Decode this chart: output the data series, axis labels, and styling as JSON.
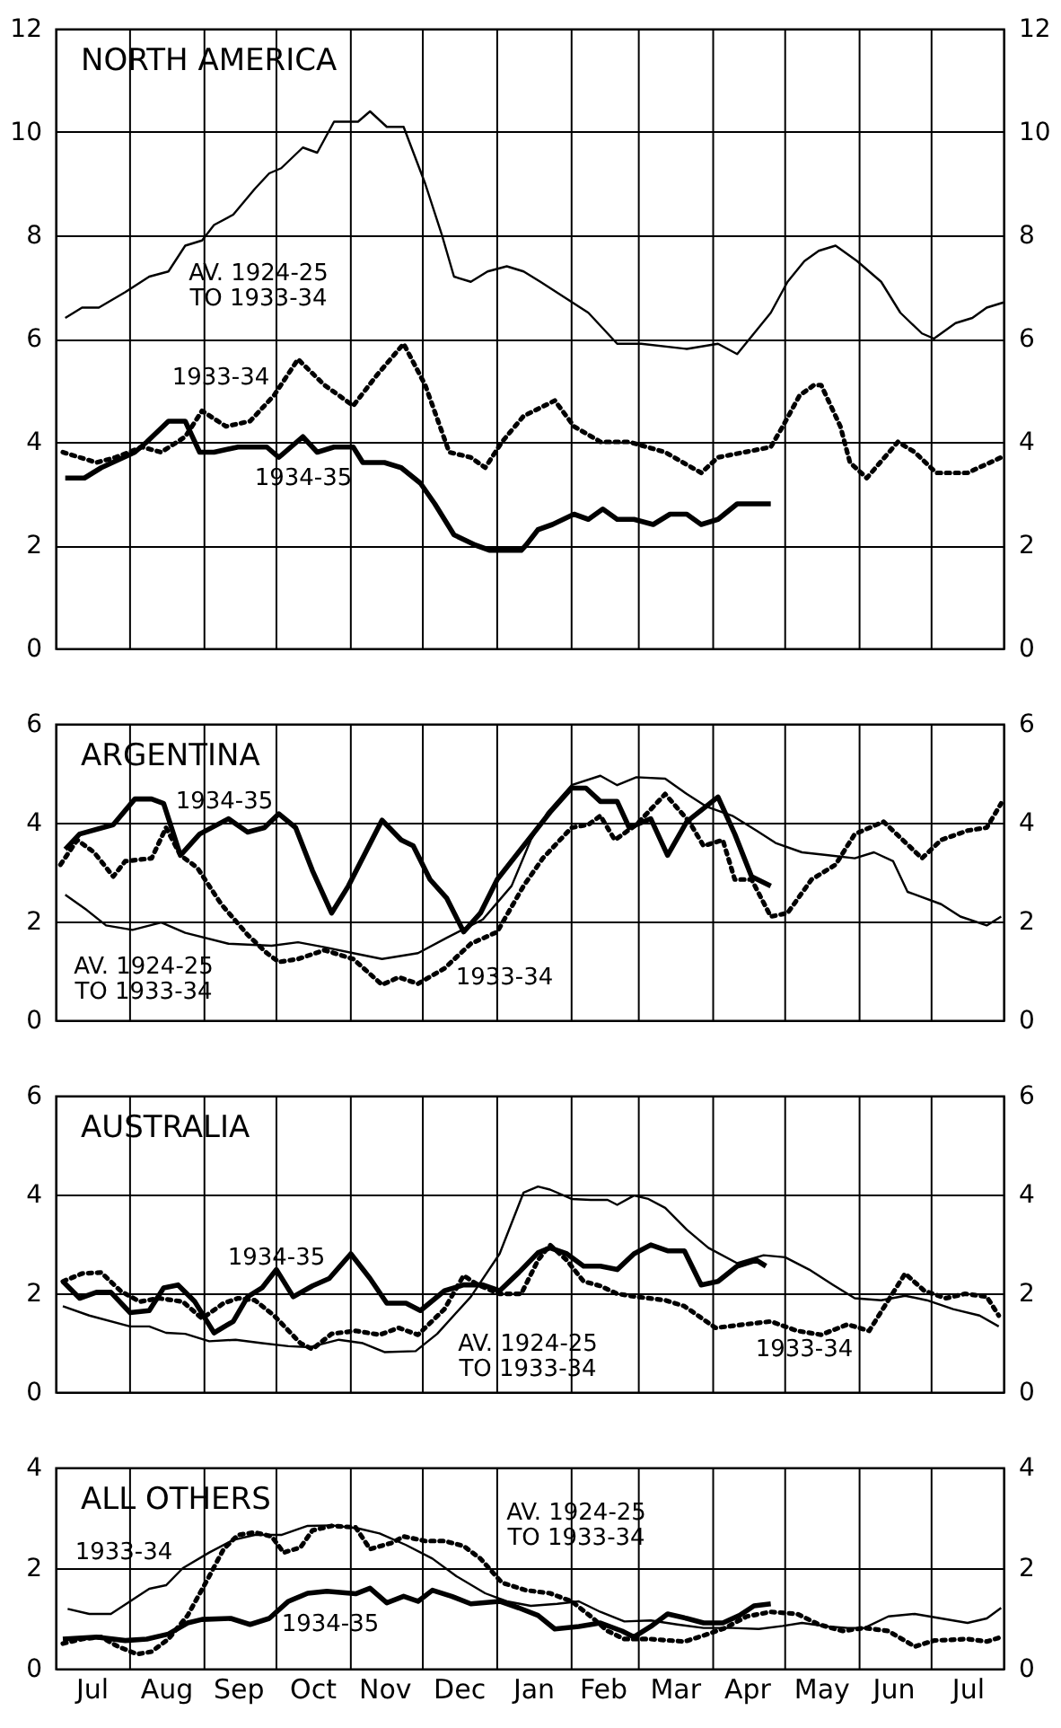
{
  "chart_data": [
    {
      "type": "line",
      "title": "NORTH AMERICA",
      "xlim": [
        "1934-07-01",
        "1935-07-31"
      ],
      "ylim": [
        0,
        12
      ],
      "yticks": [
        0,
        2,
        4,
        6,
        8,
        10,
        12
      ],
      "y2lim": [
        0,
        12
      ],
      "y2ticks": [
        0,
        2,
        4,
        6,
        8,
        10,
        12
      ],
      "grid": true,
      "tick_labels": "y",
      "xticks": [
        {
          "value": "1934-08-01",
          "label": null
        },
        {
          "value": "1934-09-01",
          "label": null
        },
        {
          "value": "1934-10-01",
          "label": null
        },
        {
          "value": "1934-11-01",
          "label": null
        },
        {
          "value": "1934-12-01",
          "label": null
        },
        {
          "value": "1935-01-01",
          "label": null
        },
        {
          "value": "1935-02-01",
          "label": null
        },
        {
          "value": "1935-03-01",
          "label": null
        },
        {
          "value": "1935-04-01",
          "label": null
        },
        {
          "value": "1935-05-01",
          "label": null
        },
        {
          "value": "1935-06-01",
          "label": null
        },
        {
          "value": "1935-07-01",
          "label": null
        }
      ],
      "series": [
        {
          "color": "#000000",
          "line_style": "solid",
          "x": [
            "1934-07-05",
            "1934-07-12",
            "1934-07-19",
            "1934-07-30",
            "1934-08-09",
            "1934-08-17",
            "1934-08-24",
            "1934-08-31",
            "1934-09-05",
            "1934-09-13",
            "1934-09-22",
            "1934-09-28",
            "1934-10-03",
            "1934-10-12",
            "1934-10-18",
            "1934-10-25",
            "1934-11-04",
            "1934-11-09",
            "1934-11-16",
            "1934-11-23",
            "1934-12-02",
            "1934-12-09",
            "1934-12-14",
            "1934-12-21",
            "1934-12-28",
            "1935-01-05",
            "1935-01-12",
            "1935-01-19",
            "1935-01-29",
            "1935-02-08",
            "1935-02-16",
            "1935-02-20",
            "1935-03-02",
            "1935-03-21",
            "1935-04-03",
            "1935-04-11",
            "1935-04-18",
            "1935-04-25",
            "1935-05-02",
            "1935-05-09",
            "1935-05-15",
            "1935-05-22",
            "1935-05-31",
            "1935-06-10",
            "1935-06-18",
            "1935-06-27",
            "1935-07-02",
            "1935-07-11",
            "1935-07-18",
            "1935-07-24",
            "1935-07-31"
          ],
          "values": [
            6.4,
            6.6,
            6.6,
            6.9,
            7.2,
            7.3,
            7.8,
            7.9,
            8.2,
            8.4,
            8.9,
            9.2,
            9.3,
            9.7,
            9.6,
            10.2,
            10.2,
            10.4,
            10.1,
            10.1,
            9.0,
            8.0,
            7.2,
            7.1,
            7.3,
            7.4,
            7.3,
            7.1,
            6.8,
            6.5,
            6.1,
            5.9,
            5.9,
            5.8,
            5.9,
            5.7,
            6.1,
            6.5,
            7.1,
            7.5,
            7.7,
            7.8,
            7.5,
            7.1,
            6.5,
            6.1,
            6.0,
            6.3,
            6.4,
            6.6,
            6.7
          ]
        },
        {
          "color": "#000000",
          "line_style": "dotted",
          "x": [
            "1934-07-04",
            "1934-07-18",
            "1934-07-26",
            "1934-08-06",
            "1934-08-14",
            "1934-08-24",
            "1934-08-31",
            "1934-09-10",
            "1934-09-20",
            "1934-09-30",
            "1934-10-10",
            "1934-10-21",
            "1934-11-02",
            "1934-11-12",
            "1934-11-23",
            "1934-12-02",
            "1934-12-12",
            "1934-12-21",
            "1934-12-27",
            "1935-01-03",
            "1935-01-12",
            "1935-01-25",
            "1935-02-02",
            "1935-02-13",
            "1935-02-25",
            "1935-03-12",
            "1935-03-27",
            "1935-04-03",
            "1935-04-25",
            "1935-04-30",
            "1935-05-07",
            "1935-05-13",
            "1935-05-16",
            "1935-05-24",
            "1935-05-28",
            "1935-06-04",
            "1935-06-17",
            "1935-06-24",
            "1935-07-03",
            "1935-07-16",
            "1935-07-30"
          ],
          "values": [
            3.8,
            3.6,
            3.7,
            3.9,
            3.8,
            4.1,
            4.6,
            4.3,
            4.4,
            4.9,
            5.6,
            5.1,
            4.7,
            5.3,
            5.9,
            5.1,
            3.8,
            3.7,
            3.5,
            4.0,
            4.5,
            4.8,
            4.3,
            4.0,
            4.0,
            3.8,
            3.4,
            3.7,
            3.9,
            4.3,
            4.9,
            5.1,
            5.1,
            4.3,
            3.6,
            3.3,
            4.0,
            3.8,
            3.4,
            3.4,
            3.7
          ]
        },
        {
          "color": "#000000",
          "line_style": "solid",
          "x": [
            "1934-07-05",
            "1934-07-13",
            "1934-07-20",
            "1934-08-03",
            "1934-08-08",
            "1934-08-17",
            "1934-08-24",
            "1934-08-30",
            "1934-09-05",
            "1934-09-15",
            "1934-09-27",
            "1934-10-02",
            "1934-10-12",
            "1934-10-18",
            "1934-10-25",
            "1934-11-02",
            "1934-11-06",
            "1934-11-15",
            "1934-11-22",
            "1934-11-30",
            "1934-12-06",
            "1934-12-14",
            "1934-12-23",
            "1934-12-29",
            "1935-01-11",
            "1935-01-13",
            "1935-01-18",
            "1935-01-24",
            "1935-02-02",
            "1935-02-08",
            "1935-02-14",
            "1935-02-20",
            "1935-02-27",
            "1935-03-07",
            "1935-03-14",
            "1935-03-21",
            "1935-03-27",
            "1935-04-03",
            "1935-04-11",
            "1935-04-25"
          ],
          "values": [
            3.3,
            3.3,
            3.5,
            3.8,
            4.0,
            4.4,
            4.4,
            3.8,
            3.8,
            3.9,
            3.9,
            3.7,
            4.1,
            3.8,
            3.9,
            3.9,
            3.6,
            3.6,
            3.5,
            3.2,
            2.8,
            2.2,
            2.0,
            1.9,
            1.9,
            2.0,
            2.3,
            2.4,
            2.6,
            2.5,
            2.7,
            2.5,
            2.5,
            2.4,
            2.6,
            2.6,
            2.4,
            2.5,
            2.8,
            2.8
          ]
        }
      ],
      "annotations": [
        "AV. 1924-25\nTO 1933-34",
        "1933-34",
        "1934-35"
      ]
    },
    {
      "type": "line",
      "title": "ARGENTINA",
      "xlim": [
        "1934-07-01",
        "1935-07-31"
      ],
      "ylim": [
        0,
        6
      ],
      "yticks": [
        0,
        2,
        4,
        6
      ],
      "y2lim": [
        0,
        6
      ],
      "y2ticks": [
        0,
        2,
        4,
        6
      ],
      "grid": true,
      "tick_labels": "y",
      "xticks": [
        {
          "value": "1934-08-01",
          "label": null
        },
        {
          "value": "1934-09-01",
          "label": null
        },
        {
          "value": "1934-10-01",
          "label": null
        },
        {
          "value": "1934-11-01",
          "label": null
        },
        {
          "value": "1934-12-01",
          "label": null
        },
        {
          "value": "1935-01-01",
          "label": null
        },
        {
          "value": "1935-02-01",
          "label": null
        },
        {
          "value": "1935-03-01",
          "label": null
        },
        {
          "value": "1935-04-01",
          "label": null
        },
        {
          "value": "1935-05-01",
          "label": null
        },
        {
          "value": "1935-06-01",
          "label": null
        },
        {
          "value": "1935-07-01",
          "label": null
        }
      ],
      "series": [
        {
          "color": "#000000",
          "line_style": "solid",
          "x": [
            "1934-07-05",
            "1934-07-14",
            "1934-07-22",
            "1934-08-02",
            "1934-08-14",
            "1934-08-24",
            "1934-09-11",
            "1934-09-29",
            "1934-10-10",
            "1934-10-21",
            "1934-11-02",
            "1934-11-14",
            "1934-11-29",
            "1934-12-11",
            "1934-12-26",
            "1935-01-07",
            "1935-01-15",
            "1935-01-22",
            "1935-02-01",
            "1935-02-13",
            "1935-02-20",
            "1935-02-28",
            "1935-03-12",
            "1935-03-21",
            "1935-03-29",
            "1935-04-09",
            "1935-04-19",
            "1935-04-27",
            "1935-05-08",
            "1935-05-19",
            "1935-05-30",
            "1935-06-07",
            "1935-06-15",
            "1935-06-21",
            "1935-07-05",
            "1935-07-13",
            "1935-07-24",
            "1935-07-30"
          ],
          "values": [
            2.54,
            2.23,
            1.92,
            1.83,
            1.98,
            1.77,
            1.55,
            1.51,
            1.58,
            1.48,
            1.36,
            1.24,
            1.36,
            1.67,
            2.04,
            2.72,
            3.65,
            4.21,
            4.76,
            4.95,
            4.76,
            4.92,
            4.89,
            4.58,
            4.33,
            4.14,
            3.84,
            3.59,
            3.4,
            3.34,
            3.28,
            3.4,
            3.22,
            2.6,
            2.35,
            2.1,
            1.92,
            2.1
          ]
        },
        {
          "color": "#000000",
          "line_style": "dotted",
          "x": [
            "1934-07-03",
            "1934-07-10",
            "1934-07-17",
            "1934-07-25",
            "1934-07-30",
            "1934-08-10",
            "1934-08-16",
            "1934-08-22",
            "1934-08-29",
            "1934-09-08",
            "1934-09-19",
            "1934-09-27",
            "1934-10-02",
            "1934-10-10",
            "1934-10-21",
            "1934-11-02",
            "1934-11-14",
            "1934-11-21",
            "1934-11-29",
            "1934-12-10",
            "1934-12-21",
            "1935-01-01",
            "1935-01-12",
            "1935-01-20",
            "1935-02-01",
            "1935-02-08",
            "1935-02-13",
            "1935-02-19",
            "1935-02-28",
            "1935-03-12",
            "1935-03-22",
            "1935-03-28",
            "1935-04-05",
            "1935-04-10",
            "1935-04-17",
            "1935-04-25",
            "1935-05-02",
            "1935-05-12",
            "1935-05-22",
            "1935-05-30",
            "1935-06-11",
            "1935-06-19",
            "1935-06-27",
            "1935-07-05",
            "1935-07-16",
            "1935-07-24",
            "1935-07-30"
          ],
          "values": [
            3.15,
            3.65,
            3.4,
            2.91,
            3.22,
            3.28,
            3.9,
            3.34,
            3.09,
            2.35,
            1.73,
            1.36,
            1.18,
            1.24,
            1.42,
            1.24,
            0.72,
            0.87,
            0.74,
            1.05,
            1.55,
            1.79,
            2.72,
            3.28,
            3.9,
            3.96,
            4.14,
            3.65,
            3.96,
            4.58,
            4.02,
            3.53,
            3.65,
            2.85,
            2.85,
            2.1,
            2.17,
            2.85,
            3.15,
            3.77,
            4.02,
            3.65,
            3.28,
            3.65,
            3.84,
            3.9,
            4.39
          ]
        },
        {
          "color": "#000000",
          "line_style": "solid",
          "x": [
            "1934-07-05",
            "1934-07-11",
            "1934-07-25",
            "1934-08-03",
            "1934-08-10",
            "1934-08-15",
            "1934-08-22",
            "1934-08-30",
            "1934-09-11",
            "1934-09-19",
            "1934-09-26",
            "1934-10-02",
            "1934-10-09",
            "1934-10-16",
            "1934-10-24",
            "1934-10-31",
            "1934-11-14",
            "1934-11-22",
            "1934-11-27",
            "1934-12-04",
            "1934-12-11",
            "1934-12-18",
            "1934-12-25",
            "1935-01-01",
            "1935-01-12",
            "1935-01-23",
            "1935-02-01",
            "1935-02-07",
            "1935-02-13",
            "1935-02-20",
            "1935-02-25",
            "1935-03-06",
            "1935-03-13",
            "1935-03-21",
            "1935-04-03",
            "1935-04-10",
            "1935-04-17",
            "1935-04-25"
          ],
          "values": [
            3.46,
            3.77,
            3.96,
            4.48,
            4.48,
            4.39,
            3.34,
            3.77,
            4.08,
            3.81,
            3.9,
            4.18,
            3.9,
            3.03,
            2.17,
            2.72,
            4.05,
            3.65,
            3.53,
            2.85,
            2.47,
            1.79,
            2.17,
            2.85,
            3.53,
            4.21,
            4.7,
            4.7,
            4.43,
            4.43,
            3.9,
            4.08,
            3.34,
            4.02,
            4.52,
            3.77,
            2.91,
            2.72
          ]
        }
      ],
      "annotations": [
        "1934-35",
        "AV. 1924-25\nTO 1933-34",
        "1933-34"
      ]
    },
    {
      "type": "line",
      "title": "AUSTRALIA",
      "xlim": [
        "1934-07-01",
        "1935-07-31"
      ],
      "ylim": [
        0,
        6
      ],
      "yticks": [
        0,
        2,
        4,
        6
      ],
      "y2lim": [
        0,
        6
      ],
      "y2ticks": [
        0,
        2,
        4,
        6
      ],
      "grid": true,
      "tick_labels": "y",
      "xticks": [
        {
          "value": "1934-08-01",
          "label": null
        },
        {
          "value": "1934-09-01",
          "label": null
        },
        {
          "value": "1934-10-01",
          "label": null
        },
        {
          "value": "1934-11-01",
          "label": null
        },
        {
          "value": "1934-12-01",
          "label": null
        },
        {
          "value": "1935-01-01",
          "label": null
        },
        {
          "value": "1935-02-01",
          "label": null
        },
        {
          "value": "1935-03-01",
          "label": null
        },
        {
          "value": "1935-04-01",
          "label": null
        },
        {
          "value": "1935-05-01",
          "label": null
        },
        {
          "value": "1935-06-01",
          "label": null
        },
        {
          "value": "1935-07-01",
          "label": null
        }
      ],
      "series": [
        {
          "color": "#000000",
          "line_style": "solid",
          "x": [
            "1934-07-04",
            "1934-07-15",
            "1934-08-01",
            "1934-08-09",
            "1934-08-16",
            "1934-08-24",
            "1934-09-03",
            "1934-09-14",
            "1934-09-25",
            "1934-10-06",
            "1934-10-15",
            "1934-10-27",
            "1934-11-06",
            "1934-11-15",
            "1934-11-28",
            "1934-12-07",
            "1934-12-21",
            "1935-01-02",
            "1935-01-12",
            "1935-01-18",
            "1935-01-23",
            "1935-02-01",
            "1935-02-09",
            "1935-02-16",
            "1935-02-20",
            "1935-02-27",
            "1935-03-05",
            "1935-03-12",
            "1935-03-21",
            "1935-03-30",
            "1935-04-11",
            "1935-04-22",
            "1935-05-01",
            "1935-05-11",
            "1935-05-21",
            "1935-05-30",
            "1935-06-10",
            "1935-06-20",
            "1935-06-29",
            "1935-07-10",
            "1935-07-21",
            "1935-07-29"
          ],
          "values": [
            1.74,
            1.55,
            1.33,
            1.33,
            1.2,
            1.18,
            1.03,
            1.06,
            0.99,
            0.93,
            0.91,
            1.06,
            0.99,
            0.81,
            0.83,
            1.18,
            1.93,
            2.8,
            4.04,
            4.16,
            4.1,
            3.91,
            3.89,
            3.89,
            3.79,
            3.98,
            3.91,
            3.73,
            3.29,
            2.92,
            2.61,
            2.77,
            2.73,
            2.48,
            2.17,
            1.9,
            1.86,
            1.95,
            1.86,
            1.68,
            1.55,
            1.33
          ]
        },
        {
          "color": "#000000",
          "line_style": "dotted",
          "x": [
            "1934-07-04",
            "1934-07-12",
            "1934-07-20",
            "1934-07-28",
            "1934-08-05",
            "1934-08-13",
            "1934-08-23",
            "1934-08-31",
            "1934-09-09",
            "1934-09-15",
            "1934-09-22",
            "1934-09-30",
            "1934-10-11",
            "1934-10-16",
            "1934-10-24",
            "1934-11-03",
            "1934-11-13",
            "1934-11-21",
            "1934-11-29",
            "1934-12-10",
            "1934-12-18",
            "1934-12-24",
            "1935-01-02",
            "1935-01-11",
            "1935-01-18",
            "1935-01-23",
            "1935-01-30",
            "1935-02-06",
            "1935-02-13",
            "1935-02-20",
            "1935-02-28",
            "1935-03-12",
            "1935-03-20",
            "1935-04-02",
            "1935-04-14",
            "1935-04-25",
            "1935-05-06",
            "1935-05-16",
            "1935-05-27",
            "1935-06-05",
            "1935-06-13",
            "1935-06-20",
            "1935-06-28",
            "1935-07-07",
            "1935-07-15",
            "1935-07-24",
            "1935-07-29"
          ],
          "values": [
            2.24,
            2.4,
            2.42,
            2.05,
            1.83,
            1.9,
            1.83,
            1.49,
            1.8,
            1.9,
            1.86,
            1.55,
            0.99,
            0.87,
            1.18,
            1.24,
            1.16,
            1.3,
            1.16,
            1.68,
            2.36,
            2.17,
            1.99,
            1.99,
            2.67,
            2.98,
            2.67,
            2.24,
            2.15,
            1.99,
            1.93,
            1.86,
            1.74,
            1.3,
            1.37,
            1.43,
            1.24,
            1.16,
            1.37,
            1.24,
            1.86,
            2.4,
            2.05,
            1.9,
            1.99,
            1.93,
            1.55
          ]
        },
        {
          "color": "#000000",
          "line_style": "solid",
          "x": [
            "1934-07-04",
            "1934-07-11",
            "1934-07-18",
            "1934-07-24",
            "1934-08-01",
            "1934-08-09",
            "1934-08-15",
            "1934-08-21",
            "1934-08-28",
            "1934-09-05",
            "1934-09-13",
            "1934-09-19",
            "1934-09-25",
            "1934-10-01",
            "1934-10-08",
            "1934-10-16",
            "1934-10-23",
            "1934-11-01",
            "1934-11-09",
            "1934-11-16",
            "1934-11-24",
            "1934-11-30",
            "1934-12-10",
            "1934-12-18",
            "1934-12-26",
            "1935-01-02",
            "1935-01-10",
            "1935-01-18",
            "1935-01-23",
            "1935-01-30",
            "1935-02-06",
            "1935-02-13",
            "1935-02-20",
            "1935-02-27",
            "1935-03-06",
            "1935-03-13",
            "1935-03-20",
            "1935-03-27",
            "1935-04-03",
            "1935-04-11",
            "1935-04-19",
            "1935-04-23"
          ],
          "values": [
            2.24,
            1.9,
            2.02,
            2.02,
            1.61,
            1.65,
            2.11,
            2.17,
            1.83,
            1.2,
            1.43,
            1.93,
            2.11,
            2.48,
            1.93,
            2.15,
            2.3,
            2.8,
            2.3,
            1.8,
            1.8,
            1.65,
            2.05,
            2.17,
            2.17,
            2.05,
            2.42,
            2.82,
            2.92,
            2.8,
            2.55,
            2.55,
            2.48,
            2.8,
            2.98,
            2.86,
            2.86,
            2.17,
            2.24,
            2.55,
            2.67,
            2.55
          ]
        }
      ],
      "annotations": [
        "1934-35",
        "AV. 1924-25\nTO 1933-34",
        "1933-34"
      ]
    },
    {
      "type": "line",
      "title": "ALL OTHERS",
      "xlim": [
        "1934-07-01",
        "1935-07-31"
      ],
      "ylim": [
        0,
        4
      ],
      "yticks": [
        0,
        2,
        4
      ],
      "y2lim": [
        0,
        4
      ],
      "y2ticks": [
        0,
        2,
        4
      ],
      "grid": true,
      "xticks": [
        {
          "value": "1934-07-16",
          "label": "Jul"
        },
        {
          "value": "1934-08-01",
          "label": null
        },
        {
          "value": "1934-08-16",
          "label": "Aug"
        },
        {
          "value": "1934-09-01",
          "label": null
        },
        {
          "value": "1934-09-15",
          "label": "Sep"
        },
        {
          "value": "1934-10-01",
          "label": null
        },
        {
          "value": "1934-10-16",
          "label": "Oct"
        },
        {
          "value": "1934-11-01",
          "label": null
        },
        {
          "value": "1934-11-15",
          "label": "Nov"
        },
        {
          "value": "1934-12-01",
          "label": null
        },
        {
          "value": "1934-12-16",
          "label": "Dec"
        },
        {
          "value": "1935-01-01",
          "label": null
        },
        {
          "value": "1935-01-16",
          "label": "Jan"
        },
        {
          "value": "1935-02-01",
          "label": null
        },
        {
          "value": "1935-02-14",
          "label": "Feb"
        },
        {
          "value": "1935-03-01",
          "label": null
        },
        {
          "value": "1935-03-16",
          "label": "Mar"
        },
        {
          "value": "1935-04-01",
          "label": null
        },
        {
          "value": "1935-04-15",
          "label": "Apr"
        },
        {
          "value": "1935-05-01",
          "label": null
        },
        {
          "value": "1935-05-16",
          "label": "May"
        },
        {
          "value": "1935-06-01",
          "label": null
        },
        {
          "value": "1935-06-15",
          "label": "Jun"
        },
        {
          "value": "1935-07-01",
          "label": null
        },
        {
          "value": "1935-07-16",
          "label": "Jul"
        }
      ],
      "series": [
        {
          "color": "#000000",
          "line_style": "solid",
          "x": [
            "1934-07-06",
            "1934-07-15",
            "1934-07-24",
            "1934-08-01",
            "1934-08-09",
            "1934-08-16",
            "1934-08-23",
            "1934-09-03",
            "1934-09-13",
            "1934-09-22",
            "1934-10-03",
            "1934-10-14",
            "1934-10-24",
            "1934-11-04",
            "1934-11-13",
            "1934-11-24",
            "1934-12-05",
            "1934-12-15",
            "1934-12-27",
            "1935-01-05",
            "1935-01-15",
            "1935-01-26",
            "1935-02-04",
            "1935-02-13",
            "1935-02-23",
            "1935-03-06",
            "1935-03-17",
            "1935-03-28",
            "1935-04-09",
            "1935-04-20",
            "1935-04-30",
            "1935-05-08",
            "1935-05-19",
            "1935-05-27",
            "1935-06-03",
            "1935-06-13",
            "1935-06-24",
            "1935-07-05",
            "1935-07-16",
            "1935-07-24",
            "1935-07-30"
          ],
          "values": [
            1.19,
            1.09,
            1.09,
            1.34,
            1.59,
            1.66,
            2.0,
            2.31,
            2.56,
            2.66,
            2.66,
            2.84,
            2.85,
            2.79,
            2.69,
            2.46,
            2.19,
            1.84,
            1.5,
            1.34,
            1.25,
            1.29,
            1.34,
            1.13,
            0.94,
            0.96,
            0.88,
            0.81,
            0.81,
            0.79,
            0.85,
            0.91,
            0.84,
            0.81,
            0.81,
            1.04,
            1.09,
            1.0,
            0.91,
            1.0,
            1.21
          ]
        },
        {
          "color": "#000000",
          "line_style": "dotted",
          "x": [
            "1934-07-04",
            "1934-07-12",
            "1934-07-20",
            "1934-07-27",
            "1934-08-04",
            "1934-08-10",
            "1934-08-17",
            "1934-08-25",
            "1934-09-02",
            "1934-09-09",
            "1934-09-15",
            "1934-09-22",
            "1934-09-29",
            "1934-10-04",
            "1934-10-11",
            "1934-10-16",
            "1934-10-24",
            "1934-11-03",
            "1934-11-09",
            "1934-11-18",
            "1934-11-23",
            "1934-12-02",
            "1934-12-10",
            "1934-12-18",
            "1934-12-25",
            "1935-01-03",
            "1935-01-13",
            "1935-01-23",
            "1935-02-01",
            "1935-02-09",
            "1935-02-16",
            "1935-02-23",
            "1935-03-06",
            "1935-03-20",
            "1935-03-28",
            "1935-04-06",
            "1935-04-15",
            "1935-04-25",
            "1935-05-06",
            "1935-05-15",
            "1935-05-25",
            "1935-06-03",
            "1935-06-13",
            "1935-06-24",
            "1935-07-02",
            "1935-07-16",
            "1935-07-24",
            "1935-07-30"
          ],
          "values": [
            0.5,
            0.59,
            0.63,
            0.44,
            0.29,
            0.34,
            0.59,
            1.06,
            1.75,
            2.38,
            2.66,
            2.71,
            2.63,
            2.31,
            2.41,
            2.75,
            2.84,
            2.81,
            2.38,
            2.5,
            2.63,
            2.54,
            2.54,
            2.44,
            2.19,
            1.71,
            1.56,
            1.5,
            1.34,
            1.04,
            0.75,
            0.59,
            0.59,
            0.54,
            0.66,
            0.81,
            1.04,
            1.13,
            1.09,
            0.88,
            0.75,
            0.81,
            0.75,
            0.44,
            0.56,
            0.59,
            0.54,
            0.63
          ]
        },
        {
          "color": "#000000",
          "line_style": "solid",
          "x": [
            "1934-07-04",
            "1934-07-18",
            "1934-07-30",
            "1934-08-08",
            "1934-08-17",
            "1934-08-25",
            "1934-08-31",
            "1934-09-12",
            "1934-09-20",
            "1934-09-28",
            "1934-10-06",
            "1934-10-14",
            "1934-10-22",
            "1934-11-03",
            "1934-11-09",
            "1934-11-16",
            "1934-11-23",
            "1934-11-29",
            "1934-12-05",
            "1934-12-13",
            "1934-12-21",
            "1935-01-02",
            "1935-01-10",
            "1935-01-18",
            "1935-01-25",
            "1935-02-04",
            "1935-02-13",
            "1935-02-22",
            "1935-02-27",
            "1935-03-06",
            "1935-03-13",
            "1935-03-21",
            "1935-03-28",
            "1935-04-05",
            "1935-04-12",
            "1935-04-18",
            "1935-04-25"
          ],
          "values": [
            0.59,
            0.63,
            0.56,
            0.59,
            0.69,
            0.91,
            0.98,
            1.0,
            0.88,
            1.0,
            1.34,
            1.5,
            1.54,
            1.49,
            1.6,
            1.31,
            1.44,
            1.34,
            1.56,
            1.44,
            1.29,
            1.34,
            1.21,
            1.06,
            0.79,
            0.84,
            0.91,
            0.75,
            0.63,
            0.84,
            1.09,
            1.0,
            0.91,
            0.91,
            1.06,
            1.25,
            1.29
          ]
        }
      ],
      "annotations": [
        "AV. 1924-25\nTO 1933-34",
        "1933-34",
        "1934-35"
      ]
    }
  ]
}
